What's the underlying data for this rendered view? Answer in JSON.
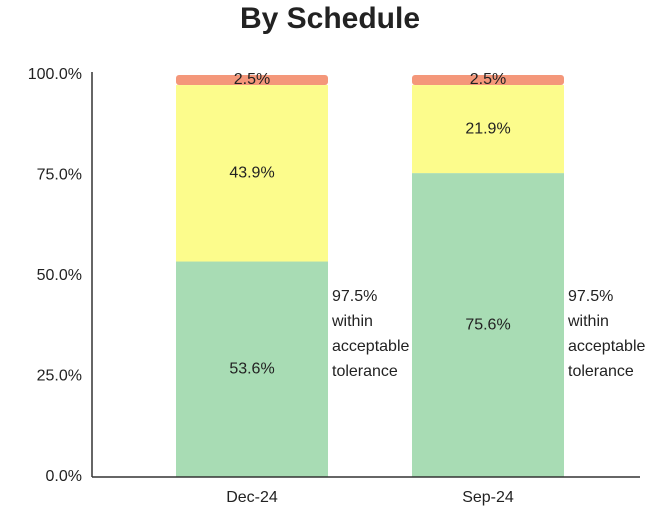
{
  "chart_data": {
    "type": "stacked_bar",
    "title": "By Schedule",
    "categories": [
      "Dec-24",
      "Sep-24"
    ],
    "series": [
      {
        "color": "#a8dcb4",
        "values": [
          53.6,
          75.6
        ],
        "value_labels": [
          "53.6%",
          "75.6%"
        ]
      },
      {
        "color": "#fcfc8c",
        "values": [
          43.9,
          21.9
        ],
        "value_labels": [
          "43.9%",
          "21.9%"
        ]
      },
      {
        "color": "#f4977a",
        "values": [
          2.5,
          2.5
        ],
        "value_labels": [
          "2.5%",
          "2.5%"
        ]
      }
    ],
    "annotations": [
      [
        "97.5%",
        "within",
        "acceptable",
        "tolerance"
      ],
      [
        "97.5%",
        "within",
        "acceptable",
        "tolerance"
      ]
    ],
    "ylim": [
      0,
      100
    ],
    "yticks": [
      {
        "value": 0,
        "label": "0.0%"
      },
      {
        "value": 25,
        "label": "25.0%"
      },
      {
        "value": 50,
        "label": "50.0%"
      },
      {
        "value": 75,
        "label": "75.0%"
      },
      {
        "value": 100,
        "label": "100.0%"
      }
    ],
    "grid": false
  }
}
